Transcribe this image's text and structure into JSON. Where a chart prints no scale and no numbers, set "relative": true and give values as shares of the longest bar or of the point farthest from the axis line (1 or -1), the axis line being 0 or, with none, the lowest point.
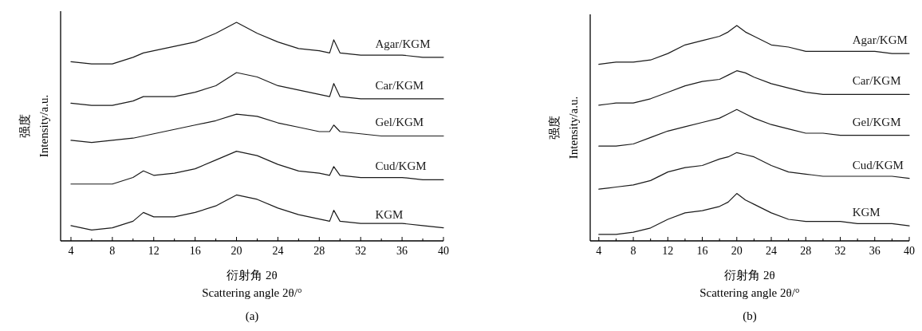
{
  "chart_data": [
    {
      "type": "line",
      "relative": true,
      "xlim": [
        3,
        40
      ],
      "xticks": [
        4,
        {
          "value": 6,
          "label": null
        },
        8,
        {
          "value": 10,
          "label": null
        },
        12,
        {
          "value": 14,
          "label": null
        },
        16,
        {
          "value": 18,
          "label": null
        },
        20,
        {
          "value": 22,
          "label": null
        },
        24,
        {
          "value": 26,
          "label": null
        },
        28,
        {
          "value": 30,
          "label": null
        },
        32,
        {
          "value": 34,
          "label": null
        },
        36,
        {
          "value": 38,
          "label": null
        },
        40
      ],
      "xlabel": "衍射角 2θ\nScattering angle 2θ/°",
      "ylabel": "强度\nIntensity/a.u.",
      "annotations": [
        "(a)"
      ],
      "x": [
        4,
        6,
        8,
        10,
        11,
        12,
        14,
        16,
        18,
        20,
        22,
        24,
        26,
        28,
        29,
        29.4,
        30,
        32,
        34,
        36,
        38,
        40
      ],
      "series": [
        {
          "name": "Agar/KGM",
          "color": "#1a1a1a",
          "values": [
            0.82,
            0.81,
            0.81,
            0.84,
            0.86,
            0.87,
            0.89,
            0.91,
            0.95,
            1.0,
            0.95,
            0.91,
            0.88,
            0.87,
            0.86,
            0.92,
            0.86,
            0.85,
            0.85,
            0.85,
            0.84,
            0.84
          ]
        },
        {
          "name": "Car/KGM",
          "color": "#1a1a1a",
          "values": [
            0.63,
            0.62,
            0.62,
            0.64,
            0.66,
            0.66,
            0.66,
            0.68,
            0.71,
            0.77,
            0.75,
            0.71,
            0.69,
            0.67,
            0.66,
            0.72,
            0.66,
            0.65,
            0.65,
            0.65,
            0.65,
            0.65
          ]
        },
        {
          "name": "Gel/KGM",
          "color": "#1a1a1a",
          "values": [
            0.46,
            0.45,
            0.46,
            0.47,
            0.48,
            0.49,
            0.51,
            0.53,
            0.55,
            0.58,
            0.57,
            0.54,
            0.52,
            0.5,
            0.5,
            0.53,
            0.5,
            0.49,
            0.48,
            0.48,
            0.48,
            0.48
          ]
        },
        {
          "name": "Cud/KGM",
          "color": "#1a1a1a",
          "values": [
            0.26,
            0.26,
            0.26,
            0.29,
            0.32,
            0.3,
            0.31,
            0.33,
            0.37,
            0.41,
            0.39,
            0.35,
            0.32,
            0.31,
            0.3,
            0.34,
            0.3,
            0.29,
            0.29,
            0.29,
            0.28,
            0.28
          ]
        },
        {
          "name": "KGM",
          "color": "#1a1a1a",
          "values": [
            0.07,
            0.05,
            0.06,
            0.09,
            0.13,
            0.11,
            0.11,
            0.13,
            0.16,
            0.21,
            0.19,
            0.15,
            0.12,
            0.1,
            0.09,
            0.14,
            0.09,
            0.08,
            0.08,
            0.08,
            0.07,
            0.06
          ]
        }
      ]
    },
    {
      "type": "line",
      "relative": true,
      "xlim": [
        3,
        40
      ],
      "xticks": [
        4,
        {
          "value": 6,
          "label": null
        },
        8,
        {
          "value": 10,
          "label": null
        },
        12,
        {
          "value": 14,
          "label": null
        },
        16,
        {
          "value": 18,
          "label": null
        },
        20,
        {
          "value": 22,
          "label": null
        },
        24,
        {
          "value": 26,
          "label": null
        },
        28,
        {
          "value": 30,
          "label": null
        },
        32,
        {
          "value": 34,
          "label": null
        },
        36,
        {
          "value": 38,
          "label": null
        },
        40
      ],
      "xlabel": "衍射角 2θ\nScattering angle 2θ/°",
      "ylabel": "强度\nIntensity/a.u.",
      "annotations": [
        "(b)"
      ],
      "x": [
        4,
        6,
        8,
        10,
        12,
        14,
        16,
        18,
        19,
        20,
        21,
        22,
        24,
        26,
        28,
        30,
        32,
        34,
        36,
        38,
        40
      ],
      "series": [
        {
          "name": "Agar/KGM",
          "color": "#1a1a1a",
          "values": [
            0.82,
            0.83,
            0.83,
            0.84,
            0.87,
            0.91,
            0.93,
            0.95,
            0.97,
            1.0,
            0.97,
            0.95,
            0.91,
            0.9,
            0.88,
            0.88,
            0.88,
            0.88,
            0.88,
            0.87,
            0.87
          ]
        },
        {
          "name": "Car/KGM",
          "color": "#1a1a1a",
          "values": [
            0.63,
            0.64,
            0.64,
            0.66,
            0.69,
            0.72,
            0.74,
            0.75,
            0.77,
            0.79,
            0.78,
            0.76,
            0.73,
            0.71,
            0.69,
            0.68,
            0.68,
            0.68,
            0.68,
            0.68,
            0.68
          ]
        },
        {
          "name": "Gel/KGM",
          "color": "#1a1a1a",
          "values": [
            0.44,
            0.44,
            0.45,
            0.48,
            0.51,
            0.53,
            0.55,
            0.57,
            0.59,
            0.61,
            0.59,
            0.57,
            0.54,
            0.52,
            0.5,
            0.5,
            0.49,
            0.49,
            0.49,
            0.49,
            0.49
          ]
        },
        {
          "name": "Cud/KGM",
          "color": "#1a1a1a",
          "values": [
            0.24,
            0.25,
            0.26,
            0.28,
            0.32,
            0.34,
            0.35,
            0.38,
            0.39,
            0.41,
            0.4,
            0.39,
            0.35,
            0.32,
            0.31,
            0.3,
            0.3,
            0.3,
            0.3,
            0.3,
            0.29
          ]
        },
        {
          "name": "KGM",
          "color": "#1a1a1a",
          "values": [
            0.03,
            0.03,
            0.04,
            0.06,
            0.1,
            0.13,
            0.14,
            0.16,
            0.18,
            0.22,
            0.19,
            0.17,
            0.13,
            0.1,
            0.09,
            0.09,
            0.09,
            0.08,
            0.08,
            0.08,
            0.07
          ]
        }
      ]
    }
  ]
}
